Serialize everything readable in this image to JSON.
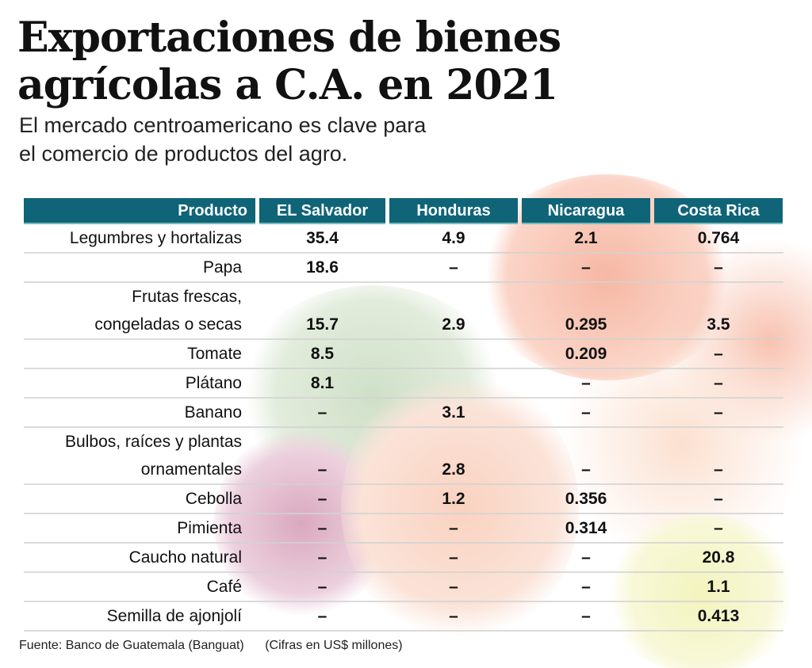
{
  "title_line1": "Exportaciones de bienes",
  "title_line2": "agrícolas a C.A. en 2021",
  "subtitle_line1": "El mercado centroamericano es clave para",
  "subtitle_line2": "el comercio de productos del agro.",
  "source": "Fuente: Banco de Guatemala (Banguat)",
  "units": "(Cifras en US$ millones)",
  "colors": {
    "header": "#0f6478"
  },
  "chart_data": {
    "type": "table",
    "title": "Exportaciones de bienes agrícolas a C.A. en 2021",
    "columns": [
      "Producto",
      "EL Salvador",
      "Honduras",
      "Nicaragua",
      "Costa Rica"
    ],
    "rows": [
      {
        "label": [
          "Legumbres y hortalizas"
        ],
        "values": [
          "35.4",
          "4.9",
          "2.1",
          "0.764"
        ]
      },
      {
        "label": [
          "Papa"
        ],
        "values": [
          "18.6",
          "–",
          "–",
          "–"
        ]
      },
      {
        "label": [
          "Frutas frescas,",
          "congeladas o secas"
        ],
        "values": [
          "15.7",
          "2.9",
          "0.295",
          "3.5"
        ]
      },
      {
        "label": [
          "Tomate"
        ],
        "values": [
          "8.5",
          "",
          "0.209",
          "–"
        ]
      },
      {
        "label": [
          "Plátano"
        ],
        "values": [
          "8.1",
          "",
          "–",
          "–"
        ]
      },
      {
        "label": [
          "Banano"
        ],
        "values": [
          "–",
          "3.1",
          "–",
          "–"
        ]
      },
      {
        "label": [
          "Bulbos, raíces y plantas",
          "ornamentales"
        ],
        "values": [
          "–",
          "2.8",
          "–",
          "–"
        ]
      },
      {
        "label": [
          "Cebolla"
        ],
        "values": [
          "–",
          "1.2",
          "0.356",
          "–"
        ]
      },
      {
        "label": [
          "Pimienta"
        ],
        "values": [
          "–",
          "–",
          "0.314",
          "–"
        ]
      },
      {
        "label": [
          "Caucho natural"
        ],
        "values": [
          "–",
          "–",
          "–",
          "20.8"
        ]
      },
      {
        "label": [
          "Café"
        ],
        "values": [
          "–",
          "–",
          "–",
          "1.1"
        ]
      },
      {
        "label": [
          "Semilla de ajonjolí"
        ],
        "values": [
          "–",
          "–",
          "–",
          "0.413"
        ]
      }
    ]
  }
}
